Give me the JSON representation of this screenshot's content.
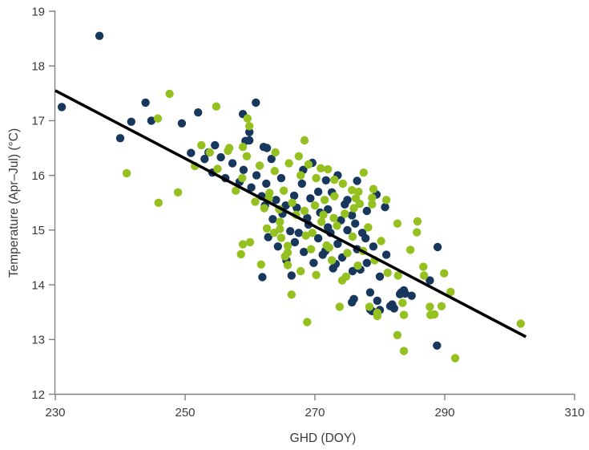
{
  "chart_data": {
    "type": "scatter",
    "title": "",
    "xlabel": "GHD (DOY)",
    "ylabel": "Temperature (Apr–Jul) (°C)",
    "xlim": [
      230,
      310
    ],
    "ylim": [
      12,
      19
    ],
    "x_ticks": [
      230,
      250,
      270,
      290,
      310
    ],
    "y_ticks": [
      12,
      13,
      14,
      15,
      16,
      17,
      18,
      19
    ],
    "grid": false,
    "legend_position": "none",
    "colors": {
      "navy_series": "#17375D",
      "green_series": "#94C11F",
      "trendline": "#000000",
      "axis": "#808080",
      "text": "#3A3A3A",
      "background": "#FFFFFF"
    },
    "trendline": {
      "x1": 230,
      "y1": 17.55,
      "x2": 302.5,
      "y2": 13.05
    },
    "series": [
      {
        "name": "navy-points",
        "color": "#17375D",
        "points": [
          [
            236.8,
            18.55
          ],
          [
            231,
            17.25
          ],
          [
            243.9,
            17.33
          ],
          [
            241.7,
            16.98
          ],
          [
            244.8,
            17.0
          ],
          [
            249.5,
            16.95
          ],
          [
            240,
            16.68
          ],
          [
            252,
            17.15
          ],
          [
            260.9,
            17.33
          ],
          [
            258.9,
            17.12
          ],
          [
            259.9,
            16.79
          ],
          [
            259.9,
            16.64
          ],
          [
            254.6,
            16.55
          ],
          [
            259.3,
            16.63
          ],
          [
            262.1,
            16.52
          ],
          [
            262.6,
            16.5
          ],
          [
            250.9,
            16.41
          ],
          [
            253.6,
            16.42
          ],
          [
            269.6,
            16.23
          ],
          [
            268.2,
            16.1
          ],
          [
            271.7,
            15.91
          ],
          [
            272.6,
            15.69
          ],
          [
            274.6,
            15.47
          ],
          [
            275.7,
            15.27
          ],
          [
            266.8,
            15.63
          ],
          [
            267.2,
            15.41
          ],
          [
            262.8,
            14.87
          ],
          [
            265.6,
            14.45
          ],
          [
            261.9,
            14.14
          ],
          [
            266.4,
            14.17
          ],
          [
            288.9,
            14.69
          ],
          [
            287.7,
            14.08
          ],
          [
            283.7,
            13.9
          ],
          [
            283.1,
            13.83
          ],
          [
            284.9,
            13.8
          ],
          [
            275.7,
            13.68
          ],
          [
            278.5,
            13.55
          ],
          [
            280,
            13.54
          ],
          [
            281.6,
            13.61
          ],
          [
            276,
            13.74
          ],
          [
            278.5,
            13.86
          ],
          [
            283.3,
            13.86
          ],
          [
            283.9,
            13.84
          ],
          [
            279.6,
            13.71
          ],
          [
            281.9,
            13.64
          ],
          [
            282.2,
            13.57
          ],
          [
            278.8,
            13.52
          ],
          [
            288.8,
            12.89
          ],
          [
            253,
            16.3
          ],
          [
            254.2,
            16.05
          ],
          [
            255.5,
            16.33
          ],
          [
            256.2,
            15.95
          ],
          [
            257.3,
            16.22
          ],
          [
            258.4,
            15.88
          ],
          [
            259,
            16.1
          ],
          [
            260.2,
            15.78
          ],
          [
            261,
            16.0
          ],
          [
            261.8,
            15.62
          ],
          [
            262.5,
            15.85
          ],
          [
            263.3,
            16.3
          ],
          [
            264,
            15.55
          ],
          [
            264.8,
            15.95
          ],
          [
            265.5,
            15.45
          ],
          [
            268,
            15.85
          ],
          [
            269.3,
            15.58
          ],
          [
            270.5,
            15.7
          ],
          [
            272,
            15.38
          ],
          [
            273.5,
            16.0
          ],
          [
            275,
            15.55
          ],
          [
            276.5,
            15.9
          ],
          [
            278,
            15.35
          ],
          [
            279.5,
            15.65
          ],
          [
            280.8,
            15.42
          ],
          [
            267.5,
            14.95
          ],
          [
            268.3,
            14.6
          ],
          [
            269,
            15.1
          ],
          [
            269.8,
            14.4
          ],
          [
            270.5,
            14.85
          ],
          [
            271.2,
            14.55
          ],
          [
            272,
            15.05
          ],
          [
            272.8,
            14.3
          ],
          [
            273.5,
            14.75
          ],
          [
            274.2,
            14.5
          ],
          [
            275,
            15.0
          ],
          [
            275.8,
            14.25
          ],
          [
            276.5,
            14.65
          ],
          [
            277.3,
            14.95
          ],
          [
            278,
            14.4
          ],
          [
            279,
            14.7
          ],
          [
            280,
            14.15
          ],
          [
            281,
            14.55
          ],
          [
            263.5,
            15.2
          ],
          [
            265,
            15.3
          ],
          [
            266.2,
            14.98
          ],
          [
            268.8,
            15.22
          ],
          [
            270.8,
            15.32
          ],
          [
            272.4,
            14.95
          ],
          [
            274,
            15.18
          ],
          [
            276.2,
            15.12
          ],
          [
            277.8,
            14.85
          ],
          [
            262.3,
            15.45
          ],
          [
            264.3,
            14.7
          ],
          [
            266.9,
            14.78
          ],
          [
            271.6,
            14.62
          ],
          [
            273.2,
            14.38
          ],
          [
            277,
            14.28
          ]
        ]
      },
      {
        "name": "green-points",
        "color": "#94C11F",
        "points": [
          [
            247.6,
            17.49
          ],
          [
            245.8,
            17.04
          ],
          [
            254.8,
            17.26
          ],
          [
            259.6,
            17.04
          ],
          [
            259.9,
            16.9
          ],
          [
            258.9,
            16.52
          ],
          [
            256.8,
            16.5
          ],
          [
            263.9,
            16.42
          ],
          [
            268.4,
            16.64
          ],
          [
            241,
            16.04
          ],
          [
            245.9,
            15.5
          ],
          [
            248.9,
            15.69
          ],
          [
            251.5,
            16.17
          ],
          [
            267.8,
            16.0
          ],
          [
            270.9,
            16.13
          ],
          [
            272,
            16.11
          ],
          [
            273,
            15.92
          ],
          [
            275.7,
            15.73
          ],
          [
            276.7,
            15.7
          ],
          [
            276.9,
            15.48
          ],
          [
            278.8,
            15.59
          ],
          [
            278.8,
            15.47
          ],
          [
            282.7,
            15.12
          ],
          [
            285.8,
            15.16
          ],
          [
            285.7,
            14.96
          ],
          [
            284.7,
            14.64
          ],
          [
            286.7,
            14.33
          ],
          [
            286.8,
            14.17
          ],
          [
            289.9,
            14.21
          ],
          [
            282.8,
            14.17
          ],
          [
            290.9,
            13.87
          ],
          [
            258.9,
            14.74
          ],
          [
            260,
            14.78
          ],
          [
            258.6,
            14.56
          ],
          [
            262.6,
            15.03
          ],
          [
            264.6,
            15.02
          ],
          [
            264.8,
            14.86
          ],
          [
            265.8,
            14.71
          ],
          [
            265.8,
            14.59
          ],
          [
            265.8,
            14.36
          ],
          [
            261.7,
            14.37
          ],
          [
            266.4,
            13.82
          ],
          [
            268.8,
            13.32
          ],
          [
            273.8,
            13.6
          ],
          [
            279.6,
            13.43
          ],
          [
            278.4,
            13.6
          ],
          [
            279.6,
            13.49
          ],
          [
            283.5,
            13.67
          ],
          [
            283.7,
            13.45
          ],
          [
            287.7,
            13.6
          ],
          [
            289.5,
            13.61
          ],
          [
            288.4,
            13.46
          ],
          [
            287.8,
            13.45
          ],
          [
            282.7,
            13.08
          ],
          [
            283.7,
            12.79
          ],
          [
            291.6,
            12.66
          ],
          [
            301.7,
            13.29
          ],
          [
            252.5,
            16.55
          ],
          [
            253.8,
            16.42
          ],
          [
            255,
            16.12
          ],
          [
            256.6,
            16.45
          ],
          [
            257.8,
            15.72
          ],
          [
            258.8,
            15.95
          ],
          [
            259.5,
            16.35
          ],
          [
            260.8,
            15.52
          ],
          [
            261.5,
            16.18
          ],
          [
            262.2,
            15.4
          ],
          [
            263,
            15.68
          ],
          [
            263.8,
            16.08
          ],
          [
            264.5,
            15.38
          ],
          [
            265.2,
            15.72
          ],
          [
            266,
            16.22
          ],
          [
            267.5,
            16.35
          ],
          [
            269,
            16.2
          ],
          [
            270.2,
            15.95
          ],
          [
            271.5,
            15.55
          ],
          [
            273,
            15.62
          ],
          [
            274.3,
            15.85
          ],
          [
            276,
            15.4
          ],
          [
            277.5,
            16.05
          ],
          [
            279,
            15.75
          ],
          [
            281,
            15.55
          ],
          [
            267.8,
            14.25
          ],
          [
            268.6,
            14.9
          ],
          [
            269.4,
            14.65
          ],
          [
            270.2,
            14.18
          ],
          [
            271,
            15.15
          ],
          [
            271.8,
            14.72
          ],
          [
            272.6,
            14.45
          ],
          [
            273.4,
            15.08
          ],
          [
            274.2,
            14.08
          ],
          [
            275,
            14.58
          ],
          [
            275.8,
            14.88
          ],
          [
            276.6,
            14.35
          ],
          [
            277.4,
            14.62
          ],
          [
            278.2,
            15.05
          ],
          [
            279.2,
            14.45
          ],
          [
            280.2,
            14.8
          ],
          [
            281.2,
            14.22
          ],
          [
            262.9,
            15.58
          ],
          [
            264.6,
            15.15
          ],
          [
            266.5,
            15.5
          ],
          [
            268.4,
            15.35
          ],
          [
            270,
            15.45
          ],
          [
            271.3,
            15.28
          ],
          [
            272.9,
            15.22
          ],
          [
            274.6,
            15.3
          ],
          [
            276.3,
            15.58
          ],
          [
            263.7,
            14.95
          ],
          [
            265.4,
            14.52
          ],
          [
            267.1,
            15.28
          ],
          [
            269.6,
            14.95
          ],
          [
            272.2,
            14.68
          ],
          [
            274.8,
            14.15
          ]
        ]
      }
    ]
  }
}
